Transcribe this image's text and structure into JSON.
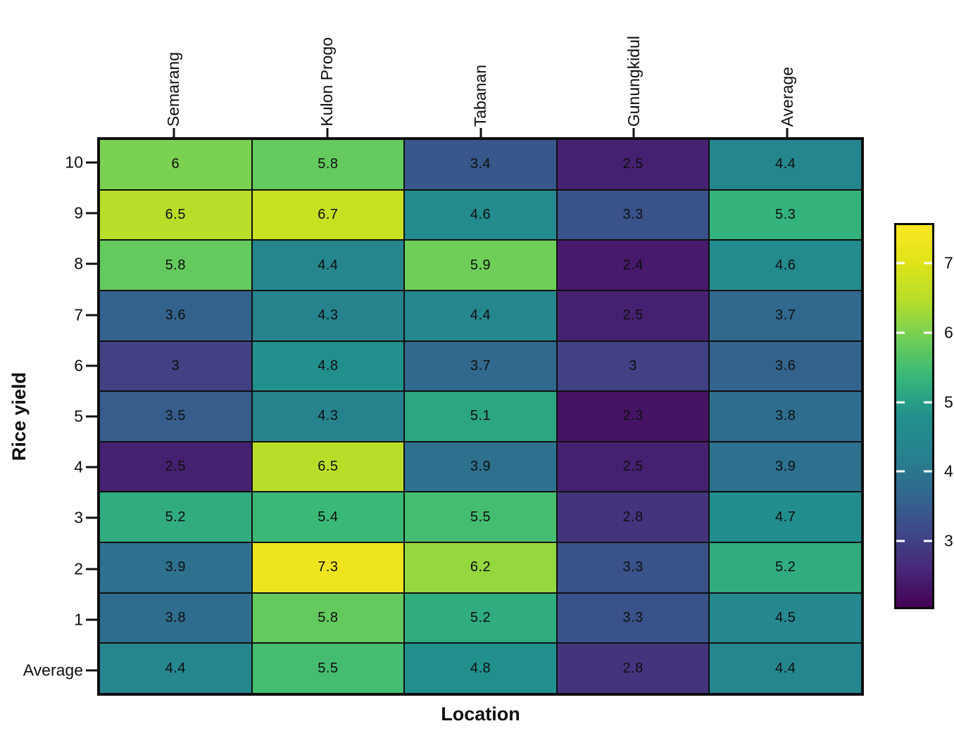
{
  "chart_data": {
    "type": "heatmap",
    "title": "",
    "xlabel": "Location",
    "ylabel": "Rice yield",
    "columns": [
      "Semarang",
      "Kulon Progo",
      "Tabanan",
      "Gunungkidul",
      "Average"
    ],
    "rows": [
      "10",
      "9",
      "8",
      "7",
      "6",
      "5",
      "4",
      "3",
      "2",
      "1",
      "Average"
    ],
    "values": [
      [
        6,
        5.8,
        3.4,
        2.5,
        4.4
      ],
      [
        6.5,
        6.7,
        4.6,
        3.3,
        5.3
      ],
      [
        5.8,
        4.4,
        5.9,
        2.4,
        4.6
      ],
      [
        3.6,
        4.3,
        4.4,
        2.5,
        3.7
      ],
      [
        3,
        4.8,
        3.7,
        3,
        3.6
      ],
      [
        3.5,
        4.3,
        5.1,
        2.3,
        3.8
      ],
      [
        2.5,
        6.5,
        3.9,
        2.5,
        3.9
      ],
      [
        5.2,
        5.4,
        5.5,
        2.8,
        4.7
      ],
      [
        3.9,
        7.3,
        6.2,
        3.3,
        5.2
      ],
      [
        3.8,
        5.8,
        5.2,
        3.3,
        4.5
      ],
      [
        4.4,
        5.5,
        4.8,
        2.8,
        4.4
      ]
    ],
    "colormap": {
      "name": "viridis",
      "stops": [
        "#440154",
        "#482878",
        "#3e4a89",
        "#31688e",
        "#26828e",
        "#21908d",
        "#35b779",
        "#6ece58",
        "#b5de2b",
        "#dfe318",
        "#fde725"
      ]
    },
    "color_domain": [
      2.05,
      7.55
    ],
    "colorbar_ticks": [
      "3",
      "4",
      "5",
      "6",
      "7"
    ],
    "grid": "on",
    "legend_position": "right",
    "cell_border_color": "#101010",
    "text_color": "#0e0e0e"
  }
}
